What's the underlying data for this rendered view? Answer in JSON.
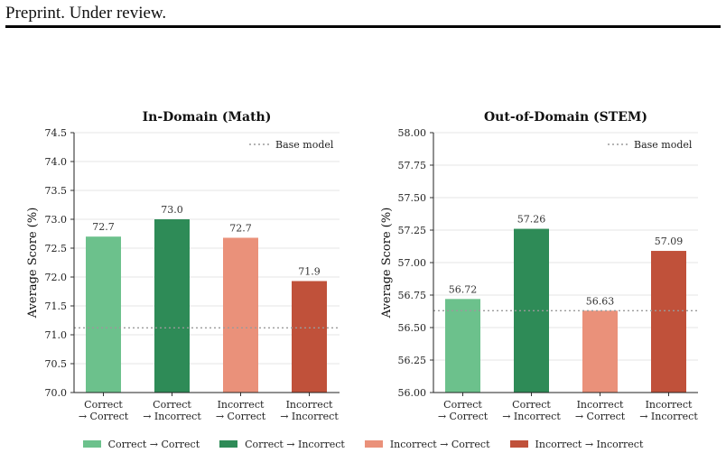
{
  "header": {
    "text": "Preprint. Under review."
  },
  "colors": {
    "cc": "#6cc18c",
    "ci": "#2e8b57",
    "ic": "#ea917a",
    "ii": "#c0513a",
    "baseline": "#9a9a9a",
    "grid": "#e6e6e6"
  },
  "legend": [
    {
      "label": "Correct → Correct",
      "color_key": "cc"
    },
    {
      "label": "Correct → Incorrect",
      "color_key": "ci"
    },
    {
      "label": "Incorrect → Correct",
      "color_key": "ic"
    },
    {
      "label": "Incorrect → Incorrect",
      "color_key": "ii"
    }
  ],
  "chart_data": [
    {
      "type": "bar",
      "title": "In-Domain (Math)",
      "ylabel": "Average Score (%)",
      "xlabel": "",
      "categories": [
        [
          "Correct",
          "→ Correct"
        ],
        [
          "Correct",
          "→ Incorrect"
        ],
        [
          "Incorrect",
          "→ Correct"
        ],
        [
          "Incorrect",
          "→ Incorrect"
        ]
      ],
      "values": [
        72.7,
        73.0,
        72.68,
        71.93
      ],
      "value_labels": [
        "72.7",
        "73.0",
        "72.7",
        "71.9"
      ],
      "color_keys": [
        "cc",
        "ci",
        "ic",
        "ii"
      ],
      "ylim": [
        70.0,
        74.5
      ],
      "yticks": [
        70.0,
        70.5,
        71.0,
        71.5,
        72.0,
        72.5,
        73.0,
        73.5,
        74.0,
        74.5
      ],
      "ytick_labels": [
        "70.0",
        "70.5",
        "71.0",
        "71.5",
        "72.0",
        "72.5",
        "73.0",
        "73.5",
        "74.0",
        "74.5"
      ],
      "baseline": {
        "label": "Base model",
        "value": 71.12
      },
      "grid": true,
      "legend_position": "top-right"
    },
    {
      "type": "bar",
      "title": "Out-of-Domain (STEM)",
      "ylabel": "Average Score (%)",
      "xlabel": "",
      "categories": [
        [
          "Correct",
          "→ Correct"
        ],
        [
          "Correct",
          "→ Incorrect"
        ],
        [
          "Incorrect",
          "→ Correct"
        ],
        [
          "Incorrect",
          "→ Incorrect"
        ]
      ],
      "values": [
        56.72,
        57.26,
        56.63,
        57.09
      ],
      "value_labels": [
        "56.72",
        "57.26",
        "56.63",
        "57.09"
      ],
      "color_keys": [
        "cc",
        "ci",
        "ic",
        "ii"
      ],
      "ylim": [
        56.0,
        58.0
      ],
      "yticks": [
        56.0,
        56.25,
        56.5,
        56.75,
        57.0,
        57.25,
        57.5,
        57.75,
        58.0
      ],
      "ytick_labels": [
        "56.00",
        "56.25",
        "56.50",
        "56.75",
        "57.00",
        "57.25",
        "57.50",
        "57.75",
        "58.00"
      ],
      "baseline": {
        "label": "Base model",
        "value": 56.63
      },
      "grid": true,
      "legend_position": "top-right"
    }
  ]
}
